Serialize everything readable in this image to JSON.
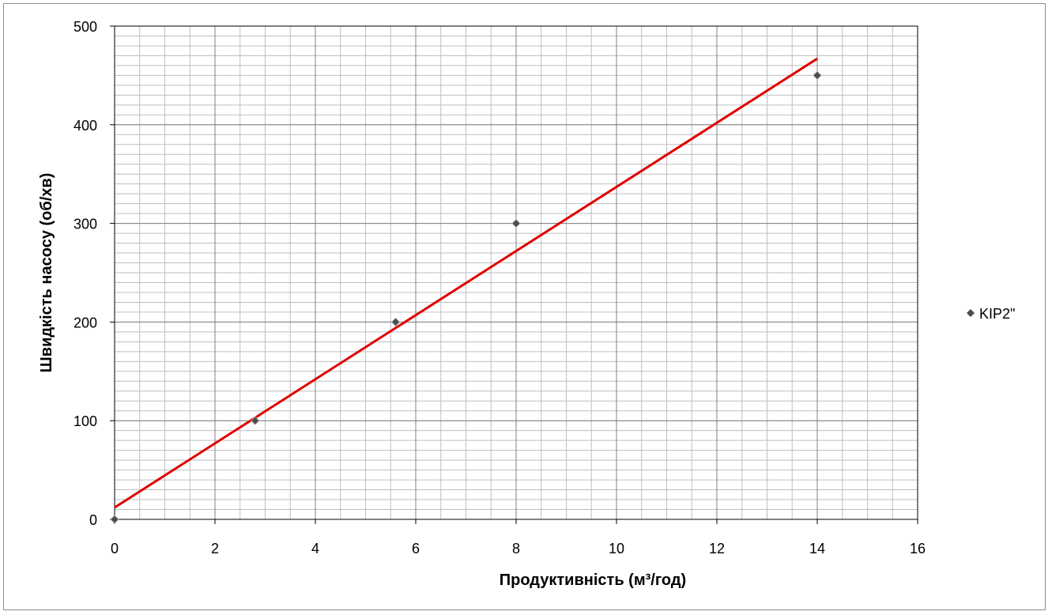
{
  "chart_data": {
    "type": "scatter",
    "title": "",
    "xlabel": "Продуктивність (м³/год)",
    "ylabel": "Швидкість насосу (об/хв)",
    "xlim": [
      0,
      16
    ],
    "ylim": [
      0,
      500
    ],
    "x_ticks": [
      0,
      2,
      4,
      6,
      8,
      10,
      12,
      14,
      16
    ],
    "y_ticks": [
      0,
      100,
      200,
      300,
      400,
      500
    ],
    "grid": true,
    "legend_position": "right",
    "series": [
      {
        "name": "KIP2\"",
        "x": [
          0,
          2.8,
          5.6,
          8,
          14
        ],
        "y": [
          0,
          100,
          200,
          300,
          450
        ],
        "marker": "diamond",
        "color": "#4d4d4d"
      }
    ],
    "trendline": {
      "type": "linear",
      "x": [
        0,
        14
      ],
      "y": [
        12,
        467
      ],
      "color": "#e00000"
    }
  }
}
